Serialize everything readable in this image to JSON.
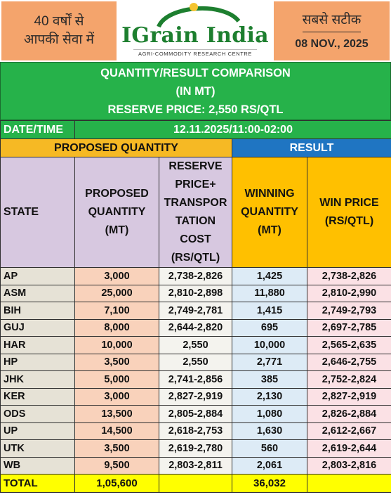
{
  "header": {
    "left_line1": "40 वर्षों से",
    "left_line2": "आपकी सेवा में",
    "brand": "IGrain India",
    "brand_tagline": "AGRI-COMMODITY RESEARCH CENTRE",
    "right_line1": "सबसे सटीक",
    "date": "08 NOV., 2025"
  },
  "banner": {
    "line1": "QUANTITY/RESULT COMPARISON",
    "line2": "(IN MT)",
    "line3": "RESERVE PRICE: 2,550 RS/QTL"
  },
  "datetime": {
    "label": "DATE/TIME",
    "value": "12.11.2025/11:00-02:00"
  },
  "sections": {
    "proposed": "PROPOSED QUANTITY",
    "result": "RESULT"
  },
  "columns": {
    "state": "STATE",
    "proposed": "PROPOSED QUANTITY (MT)",
    "reserve": "RESERVE PRICE+ TRANSPOR TATION COST (RS/QTL)",
    "winning": "WINNING QUANTITY (MT)",
    "win_price": "WIN PRICE (RS/QTL)"
  },
  "rows": [
    {
      "state": "AP",
      "proposed": "3,000",
      "reserve": "2,738-2,826",
      "winning": "1,425",
      "win_price": "2,738-2,826"
    },
    {
      "state": "ASM",
      "proposed": "25,000",
      "reserve": "2,810-2,898",
      "winning": "11,880",
      "win_price": "2,810-2,990"
    },
    {
      "state": "BIH",
      "proposed": "7,100",
      "reserve": "2,749-2,781",
      "winning": "1,415",
      "win_price": "2,749-2,793"
    },
    {
      "state": "GUJ",
      "proposed": "8,000",
      "reserve": "2,644-2,820",
      "winning": "695",
      "win_price": "2,697-2,785"
    },
    {
      "state": "HAR",
      "proposed": "10,000",
      "reserve": "2,550",
      "winning": "10,000",
      "win_price": "2,565-2,635"
    },
    {
      "state": "HP",
      "proposed": "3,500",
      "reserve": "2,550",
      "winning": "2,771",
      "win_price": "2,646-2,755"
    },
    {
      "state": "JHK",
      "proposed": "5,000",
      "reserve": "2,741-2,856",
      "winning": "385",
      "win_price": "2,752-2,824"
    },
    {
      "state": "KER",
      "proposed": "3,000",
      "reserve": "2,827-2,919",
      "winning": "2,130",
      "win_price": "2,827-2,919"
    },
    {
      "state": "ODS",
      "proposed": "13,500",
      "reserve": "2,805-2,884",
      "winning": "1,080",
      "win_price": "2,826-2,884"
    },
    {
      "state": "UP",
      "proposed": "14,500",
      "reserve": "2,618-2,753",
      "winning": "1,630",
      "win_price": "2,612-2,667"
    },
    {
      "state": "UTK",
      "proposed": "3,500",
      "reserve": "2,619-2,780",
      "winning": "560",
      "win_price": "2,619-2,644"
    },
    {
      "state": "WB",
      "proposed": "9,500",
      "reserve": "2,803-2,811",
      "winning": "2,061",
      "win_price": "2,803-2,816"
    }
  ],
  "total": {
    "label": "TOTAL",
    "proposed": "1,05,600",
    "winning": "36,032"
  }
}
